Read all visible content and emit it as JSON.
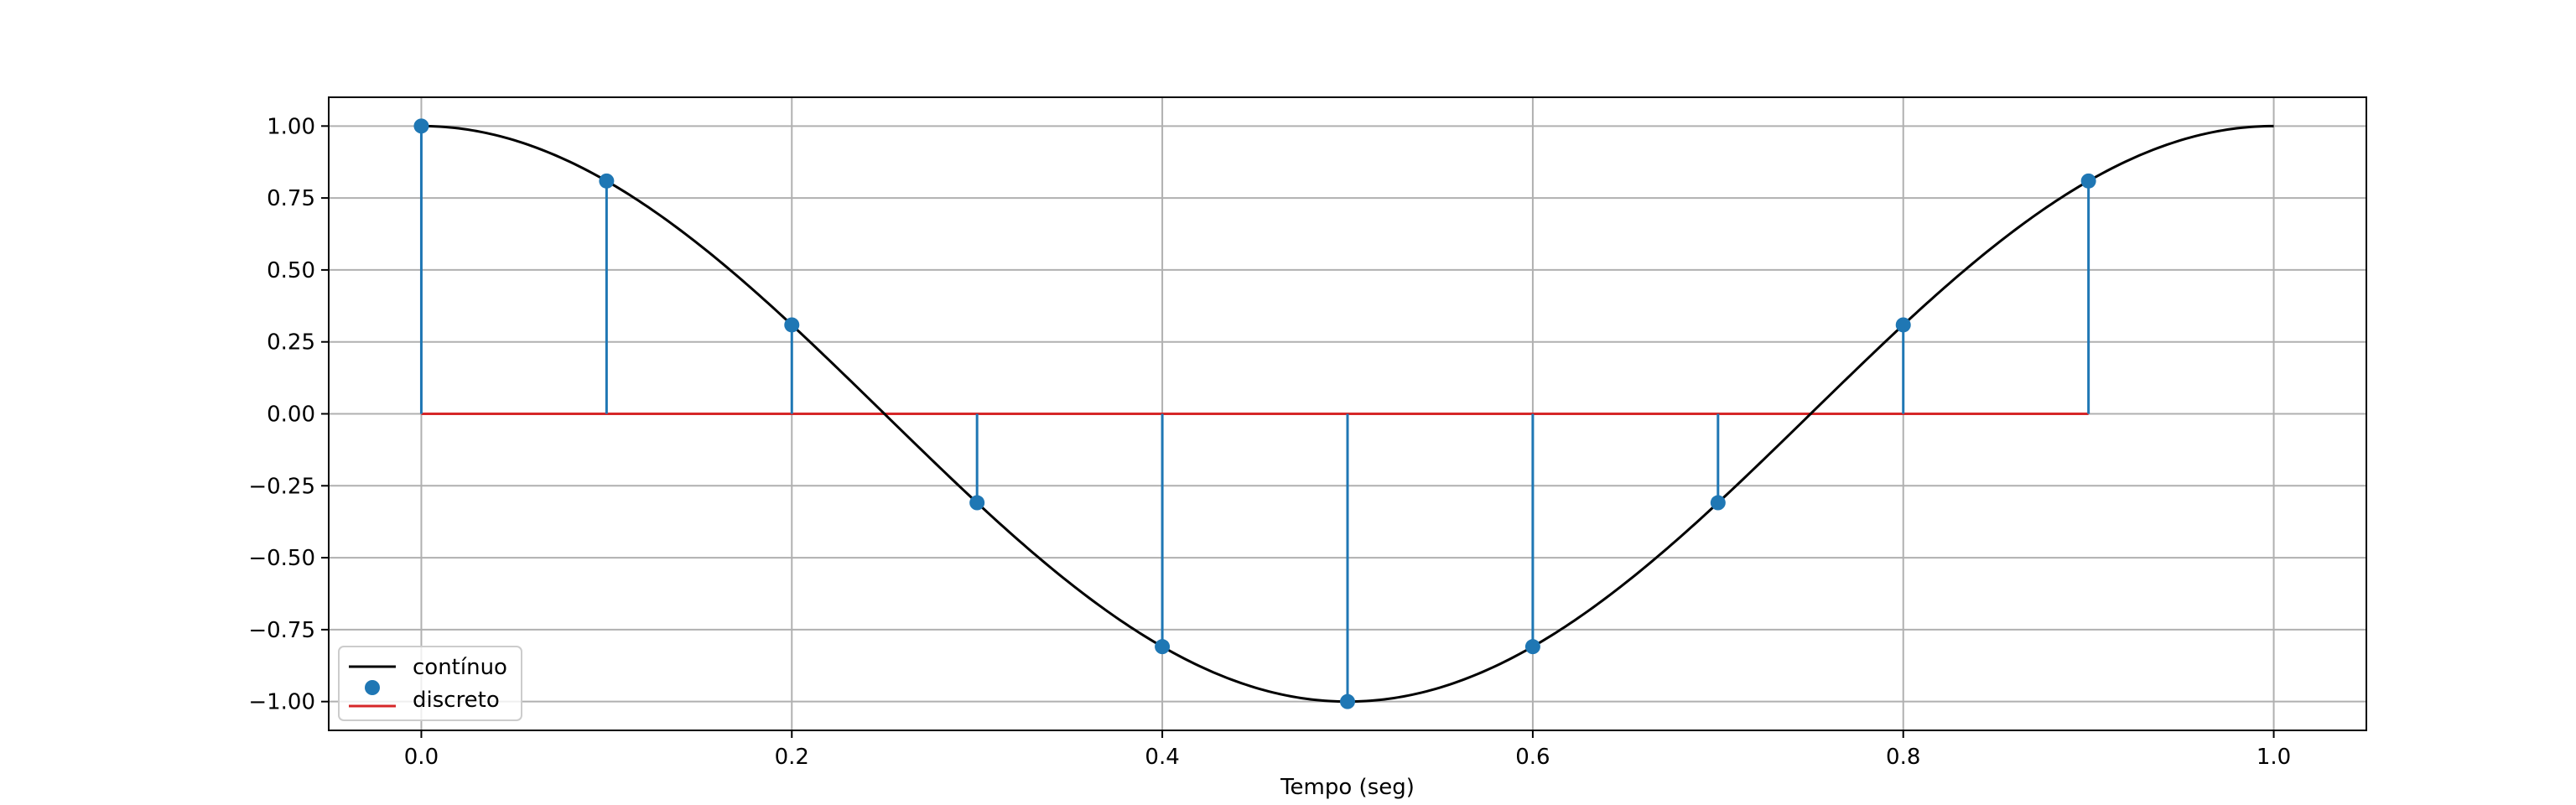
{
  "chart_data": {
    "type": "line",
    "title": "",
    "xlabel": "Tempo (seg)",
    "ylabel": "",
    "xlim": [
      -0.05,
      1.05
    ],
    "ylim": [
      -1.1,
      1.1
    ],
    "x_ticks": [
      0.0,
      0.2,
      0.4,
      0.6,
      0.8,
      1.0
    ],
    "x_tick_labels": [
      "0.0",
      "0.2",
      "0.4",
      "0.6",
      "0.8",
      "1.0"
    ],
    "y_ticks": [
      1.0,
      0.75,
      0.5,
      0.25,
      0.0,
      -0.25,
      -0.5,
      -0.75,
      -1.0
    ],
    "y_tick_labels": [
      "1.00",
      "0.75",
      "0.50",
      "0.25",
      "0.00",
      "−0.25",
      "−0.50",
      "−0.75",
      "−1.00"
    ],
    "grid": true,
    "legend_position": "lower-left",
    "series": [
      {
        "name": "contínuo",
        "kind": "line",
        "color": "#000000",
        "function": "cos(2*pi*t)",
        "t_range": [
          0.0,
          1.0
        ]
      },
      {
        "name": "discreto",
        "kind": "stem",
        "marker_color": "#1f77b4",
        "stem_color": "#1f77b4",
        "baseline_color": "#d62728",
        "x": [
          0.0,
          0.1,
          0.2,
          0.3,
          0.4,
          0.5,
          0.6,
          0.7,
          0.8,
          0.9
        ],
        "y": [
          1.0,
          0.809,
          0.309,
          -0.309,
          -0.809,
          -1.0,
          -0.809,
          -0.309,
          0.309,
          0.809
        ]
      }
    ]
  }
}
